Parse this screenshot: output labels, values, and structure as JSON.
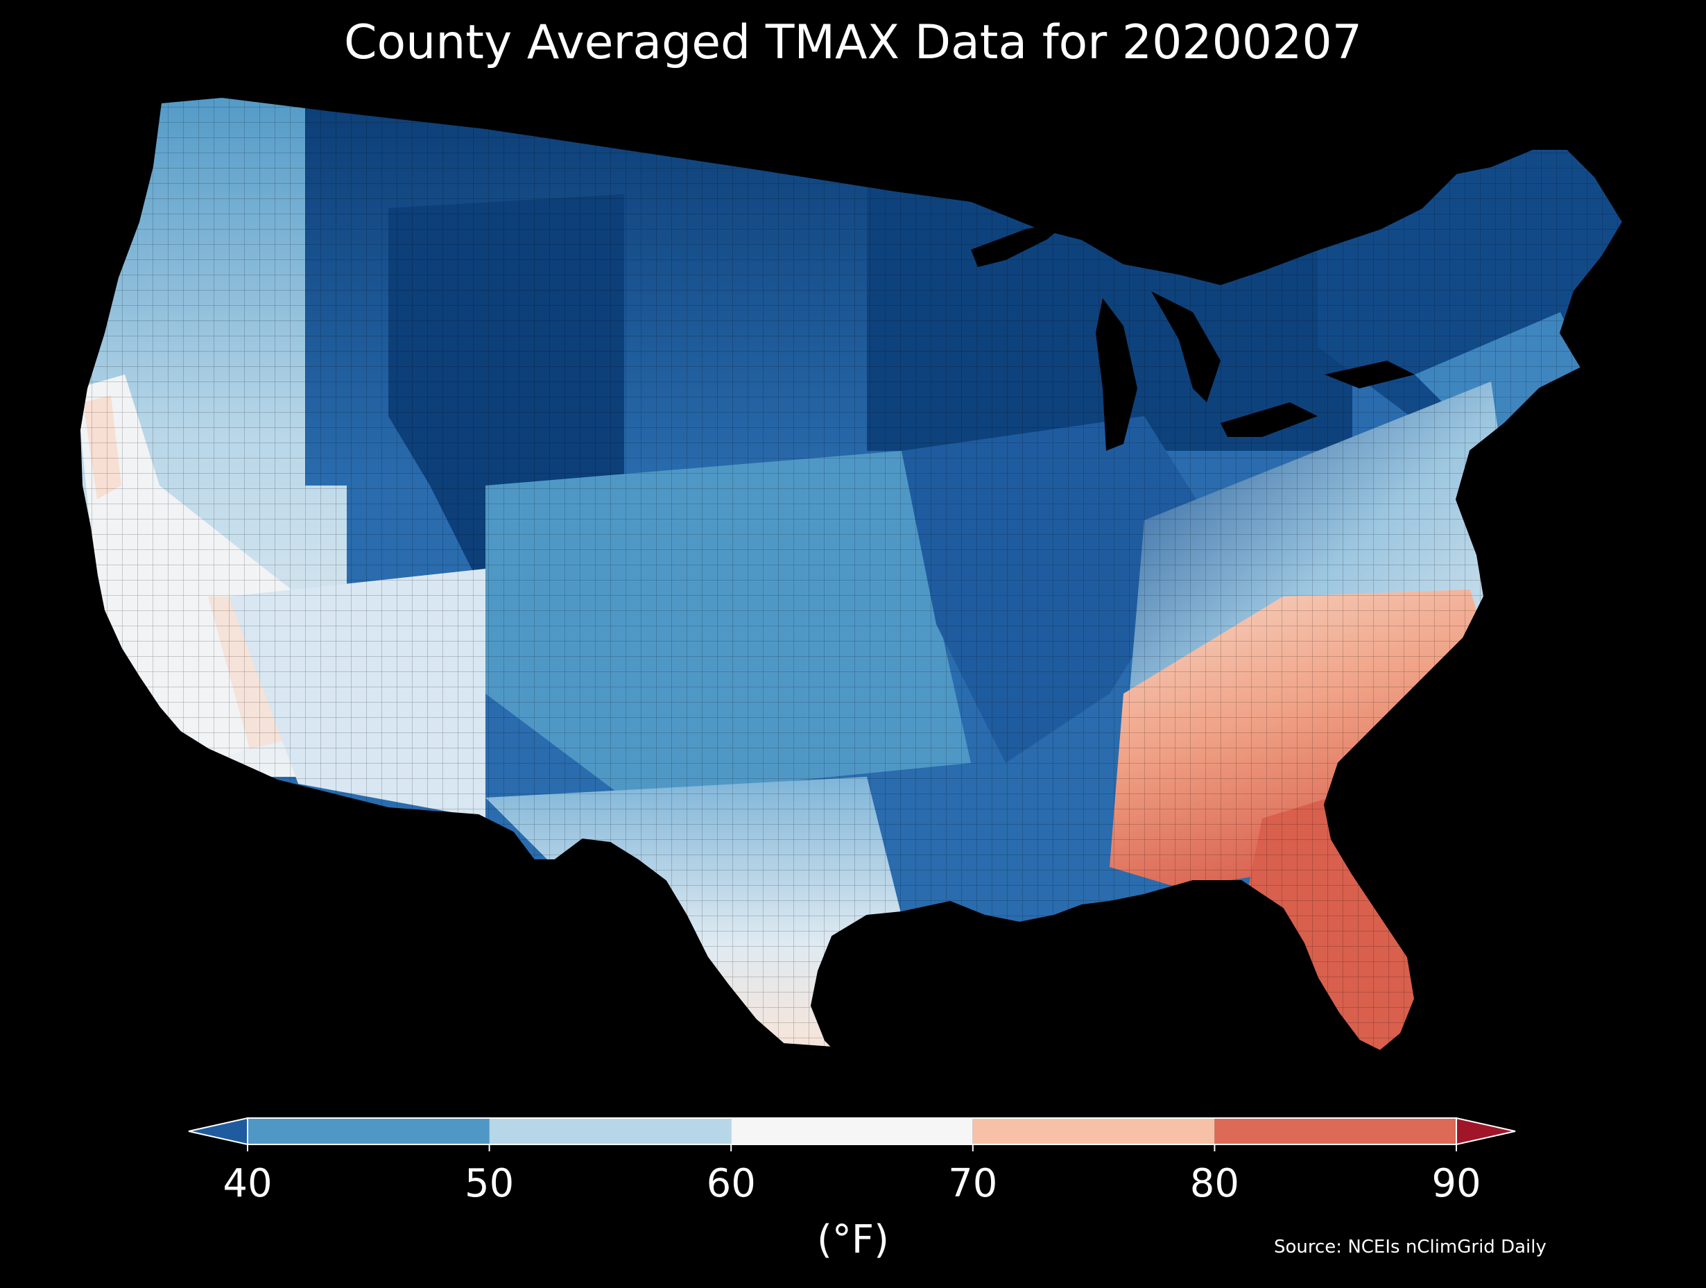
{
  "title": "County Averaged TMAX Data for 20200207",
  "legend": {
    "unit": "(°F)",
    "ticks": [
      "40",
      "50",
      "60",
      "70",
      "80",
      "90"
    ],
    "bins": [
      {
        "range": "<40",
        "color": "#1f5c9f"
      },
      {
        "range": "40-50",
        "color": "#4f98c6"
      },
      {
        "range": "50-60",
        "color": "#b7d6e8"
      },
      {
        "range": "60-70",
        "color": "#f6f6f6"
      },
      {
        "range": "70-80",
        "color": "#f6c1a6"
      },
      {
        "range": "80-90",
        "color": "#dc6a57"
      },
      {
        "range": ">90",
        "color": "#a11528"
      }
    ],
    "extend": "both"
  },
  "source": "Source: NCEIs nClimGrid Daily",
  "map": {
    "region": "Contiguous United States, county level",
    "variable": "TMAX",
    "date": "20200207",
    "region_colors": [
      {
        "region": "Northern Plains / Upper Midwest / Northeast",
        "color": "#0b3c74"
      },
      {
        "region": "Northern Rockies / Great Basin north",
        "color": "#3f86bf"
      },
      {
        "region": "Central Plains / Ohio Valley",
        "color": "#2a6cae"
      },
      {
        "region": "Southern Plains / Texas interior",
        "color": "#8fc0dc"
      },
      {
        "region": "Desert Southwest / Central California",
        "color": "#e3edf4"
      },
      {
        "region": "Southern California coast / SE Arizona",
        "color": "#f7ded2"
      },
      {
        "region": "Mid-Atlantic piedmont",
        "color": "#e4eef4"
      },
      {
        "region": "Carolinas / Georgia",
        "color": "#f4c4ad"
      },
      {
        "region": "Florida peninsula",
        "color": "#d8604d"
      },
      {
        "region": "Texas Gulf coast / South Texas",
        "color": "#f9e4d8"
      }
    ]
  }
}
